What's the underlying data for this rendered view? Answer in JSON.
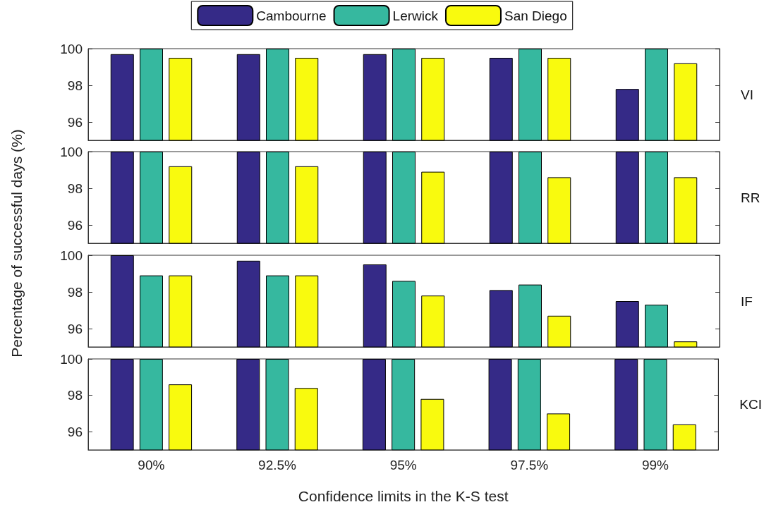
{
  "chart_data": [
    {
      "type": "bar",
      "y2label": "VI",
      "ylabel": "Percentage of successful days (%)",
      "legend": "top",
      "categories": [
        null,
        null,
        null,
        null,
        null
      ],
      "ylim": [
        95,
        100
      ],
      "yticks": [
        96,
        98,
        100
      ],
      "tick_labels": "y",
      "grid": false,
      "series": [
        {
          "name": "Cambourne",
          "color": "#352a87",
          "values": [
            99.7,
            99.7,
            99.7,
            99.5,
            97.8
          ]
        },
        {
          "name": "Lerwick",
          "color": "#36b89f",
          "values": [
            100,
            100,
            100,
            100,
            100
          ]
        },
        {
          "name": "San Diego",
          "color": "#f9fa0e",
          "values": [
            99.5,
            99.5,
            99.5,
            99.5,
            99.2
          ]
        }
      ]
    },
    {
      "type": "bar",
      "y2label": "RR",
      "categories": [
        null,
        null,
        null,
        null,
        null
      ],
      "ylim": [
        95,
        100
      ],
      "yticks": [
        96,
        98,
        100
      ],
      "tick_labels": "y",
      "grid": false,
      "series": [
        {
          "color": "#352a87",
          "values": [
            100,
            100,
            100,
            100,
            100
          ]
        },
        {
          "color": "#36b89f",
          "values": [
            100,
            100,
            100,
            100,
            100
          ]
        },
        {
          "color": "#f9fa0e",
          "values": [
            99.2,
            99.2,
            98.9,
            98.6,
            98.6
          ]
        }
      ]
    },
    {
      "type": "bar",
      "y2label": "IF",
      "categories": [
        null,
        null,
        null,
        null,
        null
      ],
      "ylim": [
        95,
        100
      ],
      "yticks": [
        96,
        98,
        100
      ],
      "tick_labels": "y",
      "grid": false,
      "series": [
        {
          "color": "#352a87",
          "values": [
            100,
            99.7,
            99.5,
            98.1,
            97.5
          ]
        },
        {
          "color": "#36b89f",
          "values": [
            98.9,
            98.9,
            98.6,
            98.4,
            97.3
          ]
        },
        {
          "color": "#f9fa0e",
          "values": [
            98.9,
            98.9,
            97.8,
            96.7,
            95.3
          ]
        }
      ]
    },
    {
      "type": "bar",
      "y2label": "KCI",
      "xlabel": "Confidence limits in the K-S test",
      "categories": [
        "90%",
        "92.5%",
        "95%",
        "97.5%",
        "99%"
      ],
      "ylim": [
        95,
        100
      ],
      "yticks": [
        96,
        98,
        100
      ],
      "grid": false,
      "series": [
        {
          "color": "#352a87",
          "values": [
            100,
            100,
            100,
            100,
            100
          ]
        },
        {
          "color": "#36b89f",
          "values": [
            100,
            100,
            100,
            100,
            100
          ]
        },
        {
          "color": "#f9fa0e",
          "values": [
            98.6,
            98.4,
            97.8,
            97.0,
            96.4
          ]
        }
      ]
    }
  ]
}
